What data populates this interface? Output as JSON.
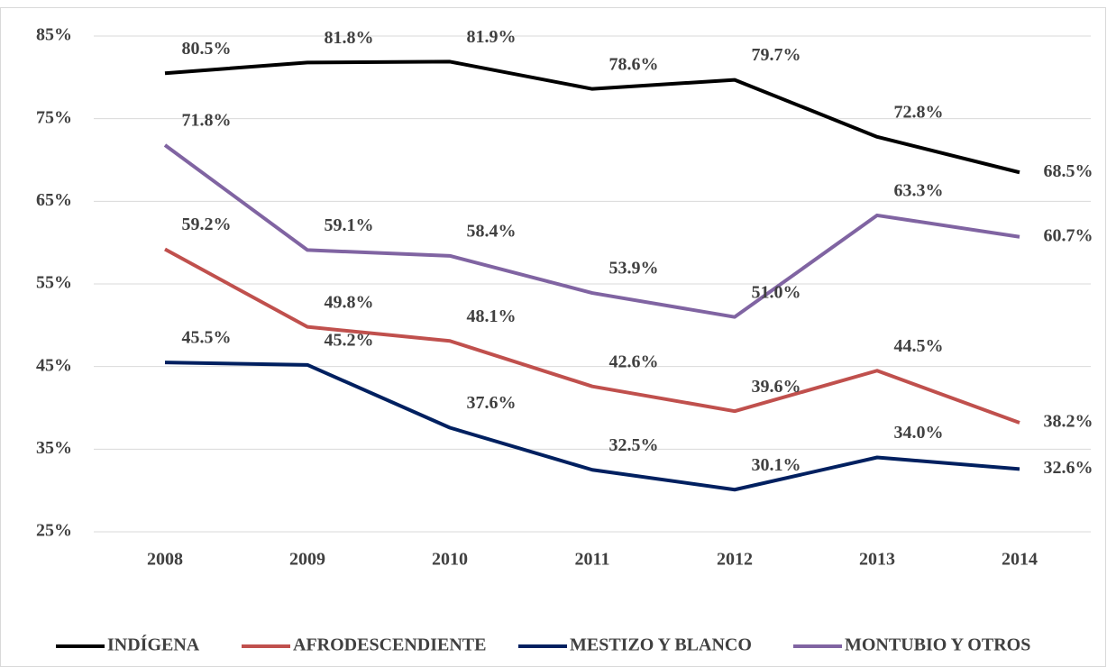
{
  "chart_data": {
    "type": "line",
    "categories": [
      "2008",
      "2009",
      "2010",
      "2011",
      "2012",
      "2013",
      "2014"
    ],
    "series": [
      {
        "name": "INDÍGENA",
        "color": "#000000",
        "values": [
          80.5,
          81.8,
          81.9,
          78.6,
          79.7,
          72.8,
          68.5
        ],
        "value_labels": [
          "80.5%",
          "81.8%",
          "81.9%",
          "78.6%",
          "79.7%",
          "72.8%",
          "68.5%"
        ]
      },
      {
        "name": "AFRODESCENDIENTE",
        "color": "#c0504d",
        "values": [
          59.2,
          49.8,
          48.1,
          42.6,
          39.6,
          44.5,
          38.2
        ],
        "value_labels": [
          "59.2%",
          "49.8%",
          "48.1%",
          "42.6%",
          "39.6%",
          "44.5%",
          "38.2%"
        ]
      },
      {
        "name": "MESTIZO Y BLANCO",
        "color": "#002060",
        "values": [
          45.5,
          45.2,
          37.6,
          32.5,
          30.1,
          34.0,
          32.6
        ],
        "value_labels": [
          "45.5%",
          "45.2%",
          "37.6%",
          "32.5%",
          "30.1%",
          "34.0%",
          "32.6%"
        ]
      },
      {
        "name": "MONTUBIO Y OTROS",
        "color": "#8064a2",
        "values": [
          71.8,
          59.1,
          58.4,
          53.9,
          51.0,
          63.3,
          60.7
        ],
        "value_labels": [
          "71.8%",
          "59.1%",
          "58.4%",
          "53.9%",
          "51.0%",
          "63.3%",
          "60.7%"
        ]
      }
    ],
    "ylim": [
      25,
      85
    ],
    "yticks": [
      {
        "value": 25,
        "label": "25%"
      },
      {
        "value": 35,
        "label": "35%"
      },
      {
        "value": 45,
        "label": "45%"
      },
      {
        "value": 55,
        "label": "55%"
      },
      {
        "value": 65,
        "label": "65%"
      },
      {
        "value": 75,
        "label": "75%"
      },
      {
        "value": 85,
        "label": "85%"
      }
    ],
    "grid": true,
    "legend": "bottom"
  }
}
